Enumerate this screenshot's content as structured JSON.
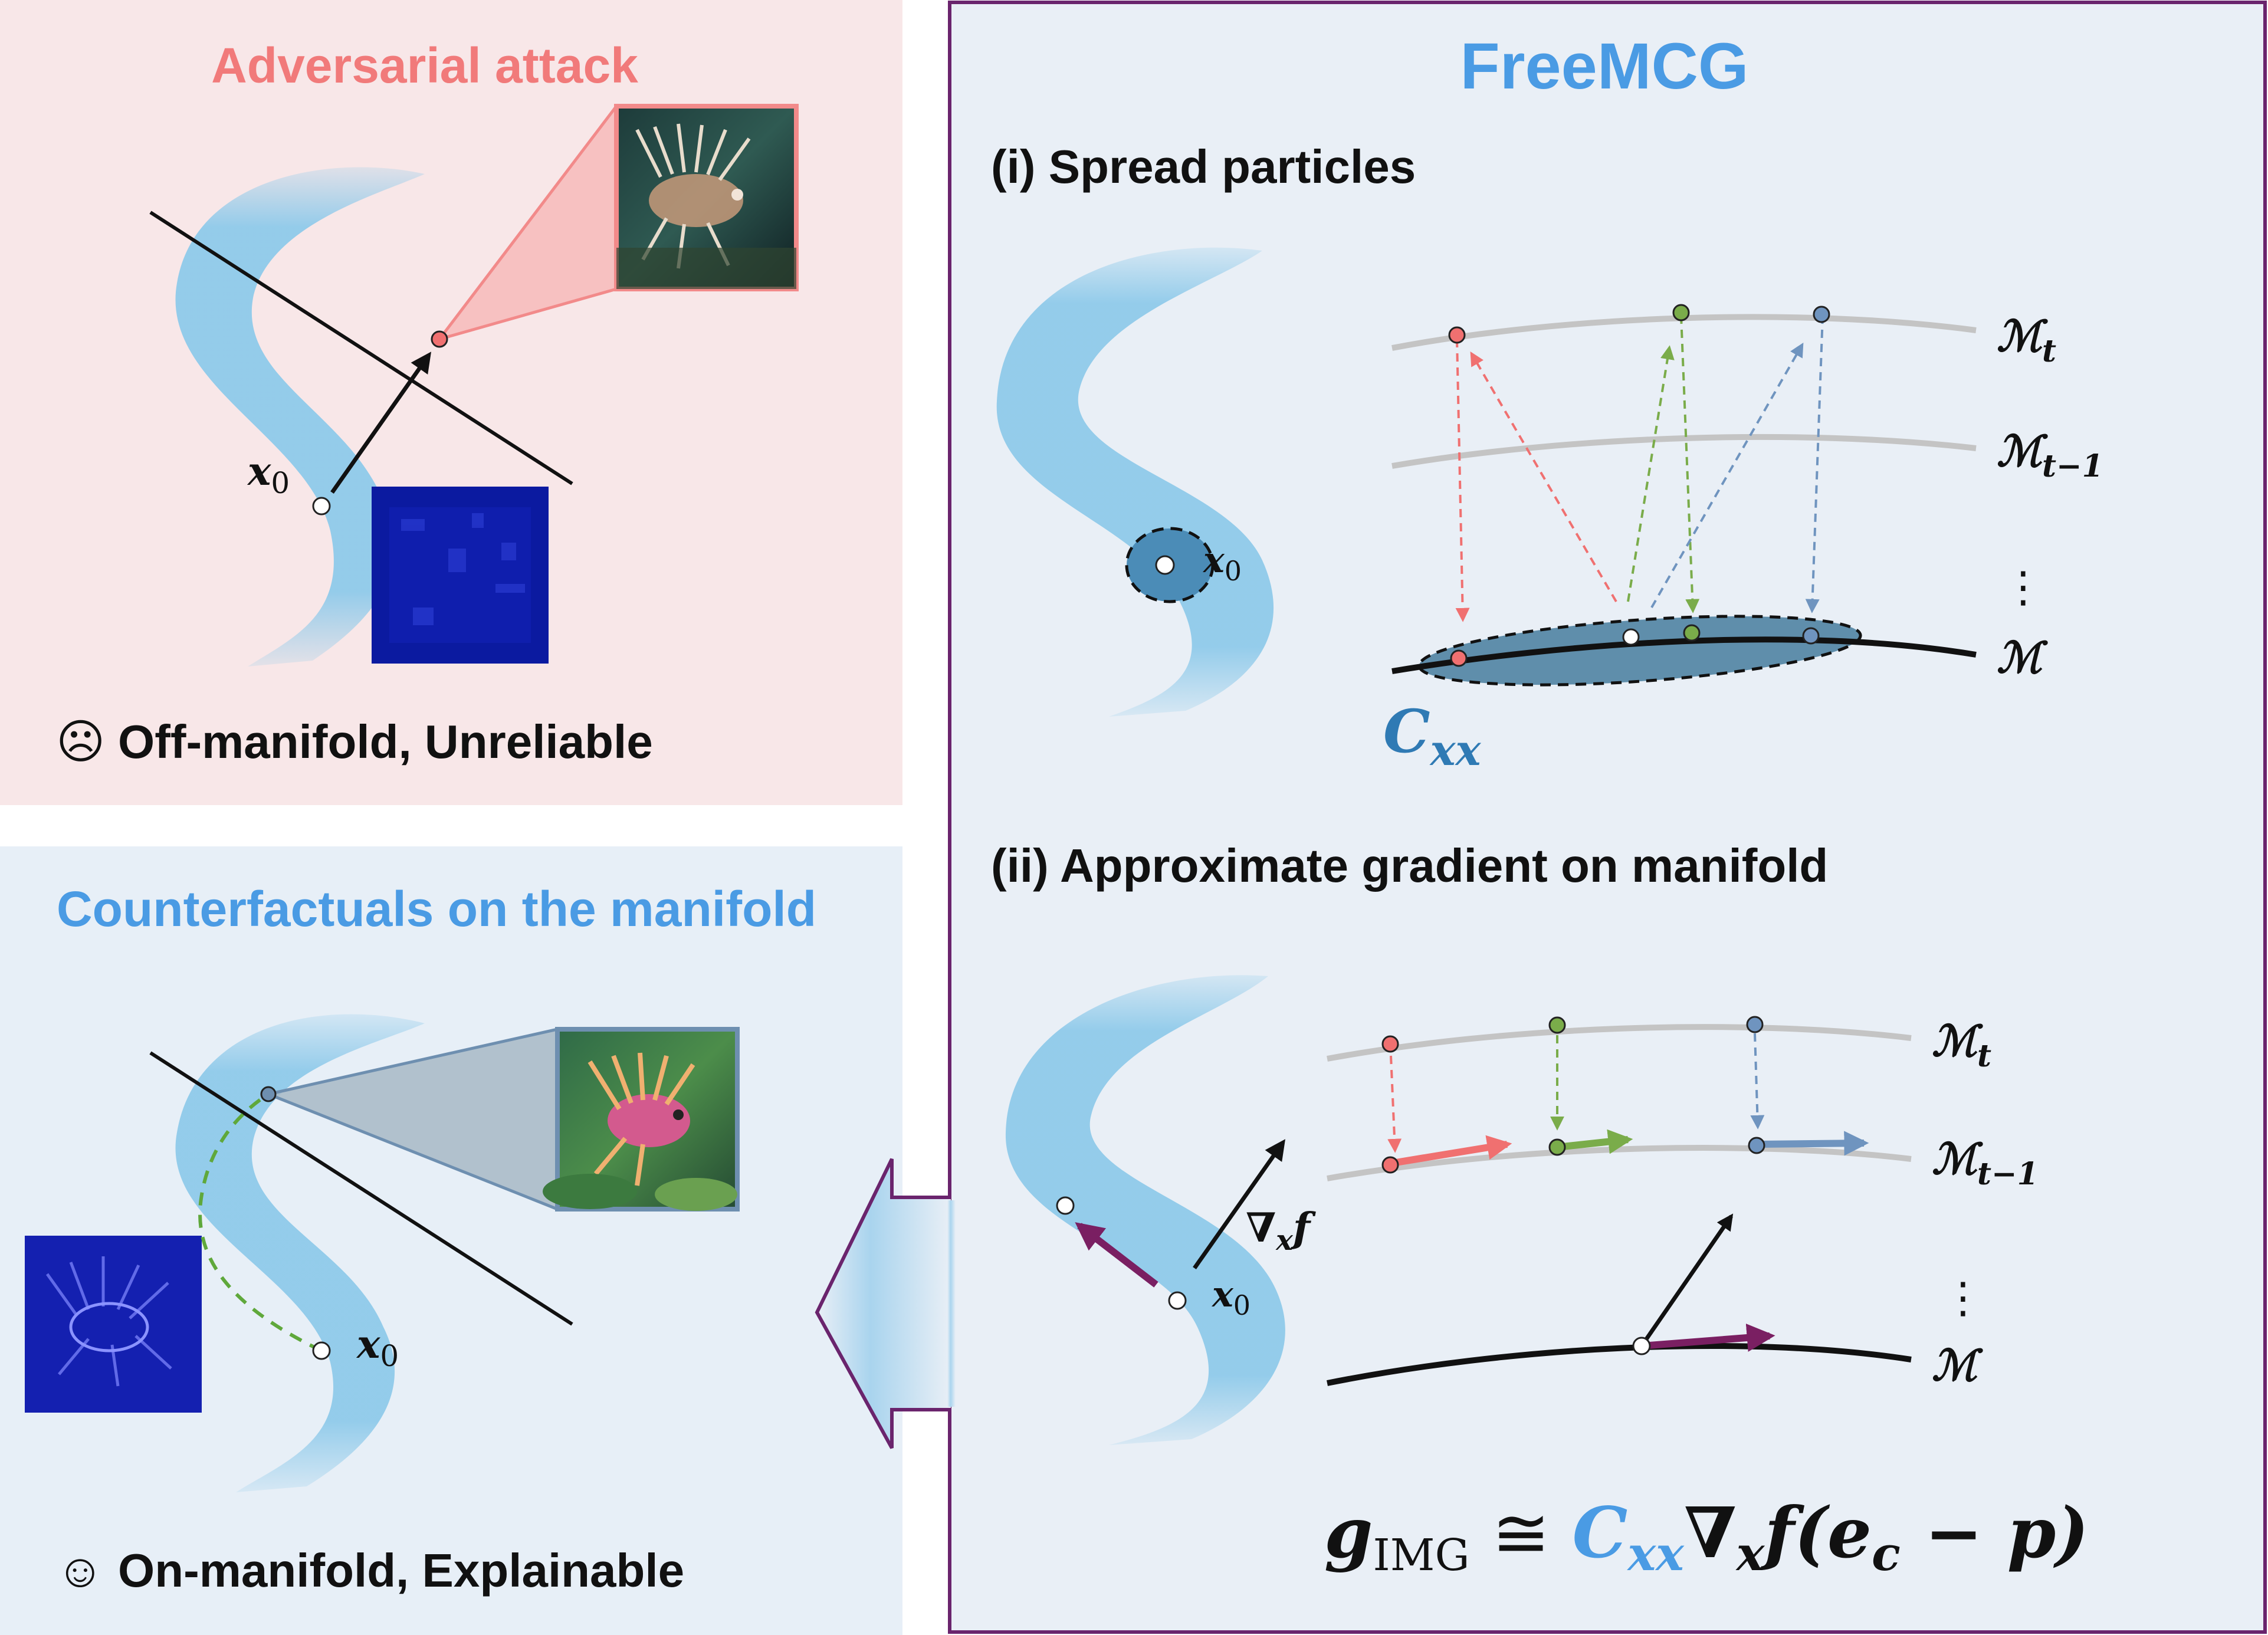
{
  "colors": {
    "attack_panel_bg": "#f8e7e8",
    "counterfactual_panel_bg": "#e7eff7",
    "freemcg_panel_bg": "#e9eff6",
    "panel_border": "#6a246d",
    "attack_title": "#f17a7a",
    "blue_title": "#4a9be4",
    "manifold_blue": "#8fcaea",
    "red_particle": "#f07070",
    "green_particle": "#7aac4a",
    "blue_particle": "#6f94bf",
    "purple_arrow": "#7a1f62",
    "covariance_fill": "#5f8eab",
    "gray_curve": "#c4c4c4"
  },
  "attack_panel": {
    "title": "Adversarial attack",
    "point_label": "x",
    "point_sub": "0",
    "caption_icon": "☹",
    "caption": "Off-manifold,  Unreliable",
    "thumbnail_icon": "lionfish-photo-icon",
    "perturbation_icon": "noise-map-icon"
  },
  "counterfactual_panel": {
    "title": "Counterfactuals on the manifold",
    "point_label": "x",
    "point_sub": "0",
    "caption_icon": "☺",
    "caption": "On-manifold, Explainable",
    "thumbnail_icon": "generated-fish-icon",
    "difference_icon": "difference-map-icon"
  },
  "freemcg_panel": {
    "title": "FreeMCG",
    "step1": {
      "title": "(i) Spread particles",
      "point_label": "x",
      "point_sub": "0",
      "manifold_labels": [
        {
          "main": "ℳ",
          "sub": "t"
        },
        {
          "main": "ℳ",
          "sub": "t−1"
        },
        {
          "main": "ℳ",
          "sub": ""
        }
      ],
      "ellipsis": "⋮",
      "cov_main": "C",
      "cov_sub": "xx"
    },
    "step2": {
      "title": "(ii) Approximate gradient on manifold",
      "point_label": "x",
      "point_sub": "0",
      "grad_label": "∇",
      "grad_sub": "x",
      "grad_f": "f",
      "manifold_labels": [
        {
          "main": "ℳ",
          "sub": "t"
        },
        {
          "main": "ℳ",
          "sub": "t−1"
        },
        {
          "main": "ℳ",
          "sub": ""
        }
      ],
      "ellipsis": "⋮"
    },
    "formula": {
      "g": "g",
      "g_sub": "IMG",
      "approx": " ≅ ",
      "c": "C",
      "c_sub": "xx",
      "nabla": "∇",
      "nabla_sub": "x",
      "tail_f": "f(",
      "e": "e",
      "e_sub": "c",
      "tail": " − p)"
    }
  }
}
